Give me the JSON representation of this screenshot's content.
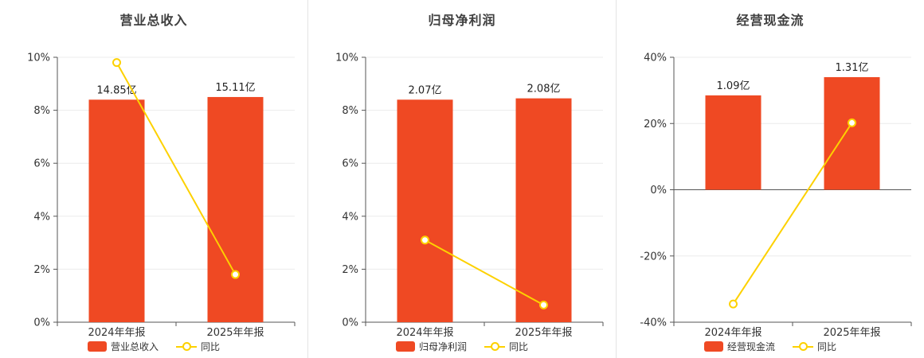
{
  "colors": {
    "bar": "#ef4923",
    "line": "#fdd100",
    "axis": "#555555",
    "grid": "#ececec",
    "text": "#333333",
    "value_label": "#222222",
    "divider": "#e4e4e4",
    "title": "#3f3f3f"
  },
  "chart_data": [
    {
      "type": "bar+line",
      "title": "营业总收入",
      "categories": [
        "2024年年报",
        "2025年年报"
      ],
      "bar_series": {
        "name": "营业总收入",
        "value_labels": [
          "14.85亿",
          "15.11亿"
        ],
        "heights_on_pct_axis": [
          8.4,
          8.5
        ]
      },
      "line_series": {
        "name": "同比",
        "values_pct": [
          9.8,
          1.8
        ]
      },
      "ylim": [
        0,
        10
      ],
      "ytick_values": [
        0,
        2,
        4,
        6,
        8,
        10
      ],
      "ytick_labels": [
        "0%",
        "2%",
        "4%",
        "6%",
        "8%",
        "10%"
      ],
      "grid": "on",
      "legend_position": "bottom"
    },
    {
      "type": "bar+line",
      "title": "归母净利润",
      "categories": [
        "2024年年报",
        "2025年年报"
      ],
      "bar_series": {
        "name": "归母净利润",
        "value_labels": [
          "2.07亿",
          "2.08亿"
        ],
        "heights_on_pct_axis": [
          8.4,
          8.45
        ]
      },
      "line_series": {
        "name": "同比",
        "values_pct": [
          3.1,
          0.65
        ]
      },
      "ylim": [
        0,
        10
      ],
      "ytick_values": [
        0,
        2,
        4,
        6,
        8,
        10
      ],
      "ytick_labels": [
        "0%",
        "2%",
        "4%",
        "6%",
        "8%",
        "10%"
      ],
      "grid": "on",
      "legend_position": "bottom"
    },
    {
      "type": "bar+line",
      "title": "经营现金流",
      "categories": [
        "2024年年报",
        "2025年年报"
      ],
      "bar_series": {
        "name": "经营现金流",
        "value_labels": [
          "1.09亿",
          "1.31亿"
        ],
        "heights_on_pct_axis": [
          28.5,
          34.0
        ]
      },
      "line_series": {
        "name": "同比",
        "values_pct": [
          -34.5,
          20.2
        ]
      },
      "ylim": [
        -40,
        40
      ],
      "ytick_values": [
        -40,
        -20,
        0,
        20,
        40
      ],
      "ytick_labels": [
        "-40%",
        "-20%",
        "0%",
        "20%",
        "40%"
      ],
      "grid": "on",
      "legend_position": "bottom"
    }
  ]
}
